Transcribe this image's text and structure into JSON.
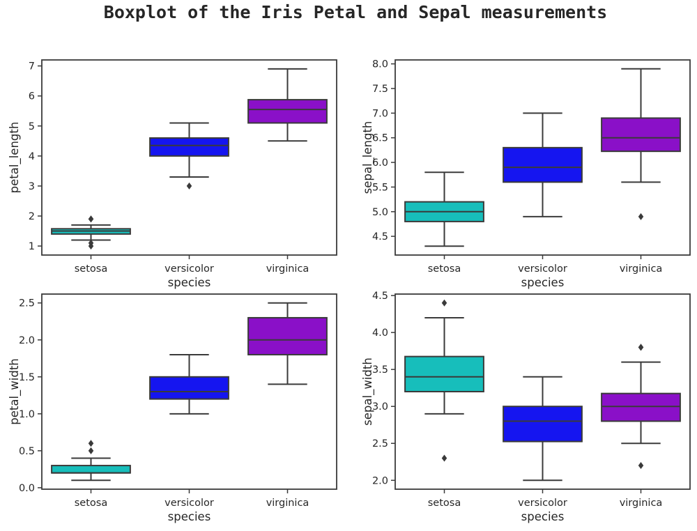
{
  "title": "Boxplot of the Iris Petal and Sepal measurements",
  "colors": {
    "setosa": "#17bebb",
    "versicolor": "#1515f0",
    "virginica": "#8a10c8",
    "line": "#3a3a3a"
  },
  "chart_data": [
    {
      "type": "box",
      "xlabel": "species",
      "ylabel": "petal_length",
      "categories": [
        "setosa",
        "versicolor",
        "virginica"
      ],
      "ylim": [
        0.7,
        7.2
      ],
      "yticks": [
        1,
        2,
        3,
        4,
        5,
        6,
        7
      ],
      "ytick_labels": [
        "1",
        "2",
        "3",
        "4",
        "5",
        "6",
        "7"
      ],
      "boxes": [
        {
          "category": "setosa",
          "whisker_low": 1.2,
          "q1": 1.4,
          "median": 1.5,
          "q3": 1.575,
          "whisker_high": 1.7,
          "outliers": [
            1.0,
            1.1,
            1.9,
            1.9
          ]
        },
        {
          "category": "versicolor",
          "whisker_low": 3.3,
          "q1": 4.0,
          "median": 4.35,
          "q3": 4.6,
          "whisker_high": 5.1,
          "outliers": [
            3.0
          ]
        },
        {
          "category": "virginica",
          "whisker_low": 4.5,
          "q1": 5.1,
          "median": 5.55,
          "q3": 5.875,
          "whisker_high": 6.9,
          "outliers": []
        }
      ]
    },
    {
      "type": "box",
      "xlabel": "species",
      "ylabel": "sepal_length",
      "categories": [
        "setosa",
        "versicolor",
        "virginica"
      ],
      "ylim": [
        4.12,
        8.08
      ],
      "yticks": [
        4.5,
        5.0,
        5.5,
        6.0,
        6.5,
        7.0,
        7.5,
        8.0
      ],
      "ytick_labels": [
        "4.5",
        "5.0",
        "5.5",
        "6.0",
        "6.5",
        "7.0",
        "7.5",
        "8.0"
      ],
      "boxes": [
        {
          "category": "setosa",
          "whisker_low": 4.3,
          "q1": 4.8,
          "median": 5.0,
          "q3": 5.2,
          "whisker_high": 5.8,
          "outliers": []
        },
        {
          "category": "versicolor",
          "whisker_low": 4.9,
          "q1": 5.6,
          "median": 5.9,
          "q3": 6.3,
          "whisker_high": 7.0,
          "outliers": []
        },
        {
          "category": "virginica",
          "whisker_low": 5.6,
          "q1": 6.225,
          "median": 6.5,
          "q3": 6.9,
          "whisker_high": 7.9,
          "outliers": [
            4.9
          ]
        }
      ]
    },
    {
      "type": "box",
      "xlabel": "species",
      "ylabel": "petal_width",
      "categories": [
        "setosa",
        "versicolor",
        "virginica"
      ],
      "ylim": [
        -0.02,
        2.62
      ],
      "yticks": [
        0.0,
        0.5,
        1.0,
        1.5,
        2.0,
        2.5
      ],
      "ytick_labels": [
        "0.0",
        "0.5",
        "1.0",
        "1.5",
        "2.0",
        "2.5"
      ],
      "boxes": [
        {
          "category": "setosa",
          "whisker_low": 0.1,
          "q1": 0.2,
          "median": 0.2,
          "q3": 0.3,
          "whisker_high": 0.4,
          "outliers": [
            0.5,
            0.6
          ]
        },
        {
          "category": "versicolor",
          "whisker_low": 1.0,
          "q1": 1.2,
          "median": 1.3,
          "q3": 1.5,
          "whisker_high": 1.8,
          "outliers": []
        },
        {
          "category": "virginica",
          "whisker_low": 1.4,
          "q1": 1.8,
          "median": 2.0,
          "q3": 2.3,
          "whisker_high": 2.5,
          "outliers": []
        }
      ]
    },
    {
      "type": "box",
      "xlabel": "species",
      "ylabel": "sepal_width",
      "categories": [
        "setosa",
        "versicolor",
        "virginica"
      ],
      "ylim": [
        1.88,
        4.52
      ],
      "yticks": [
        2.0,
        2.5,
        3.0,
        3.5,
        4.0,
        4.5
      ],
      "ytick_labels": [
        "2.0",
        "2.5",
        "3.0",
        "3.5",
        "4.0",
        "4.5"
      ],
      "boxes": [
        {
          "category": "setosa",
          "whisker_low": 2.9,
          "q1": 3.2,
          "median": 3.4,
          "q3": 3.675,
          "whisker_high": 4.2,
          "outliers": [
            2.3,
            4.4
          ]
        },
        {
          "category": "versicolor",
          "whisker_low": 2.0,
          "q1": 2.525,
          "median": 2.8,
          "q3": 3.0,
          "whisker_high": 3.4,
          "outliers": []
        },
        {
          "category": "virginica",
          "whisker_low": 2.5,
          "q1": 2.8,
          "median": 3.0,
          "q3": 3.175,
          "whisker_high": 3.6,
          "outliers": [
            2.2,
            3.8,
            3.8
          ]
        }
      ]
    }
  ]
}
